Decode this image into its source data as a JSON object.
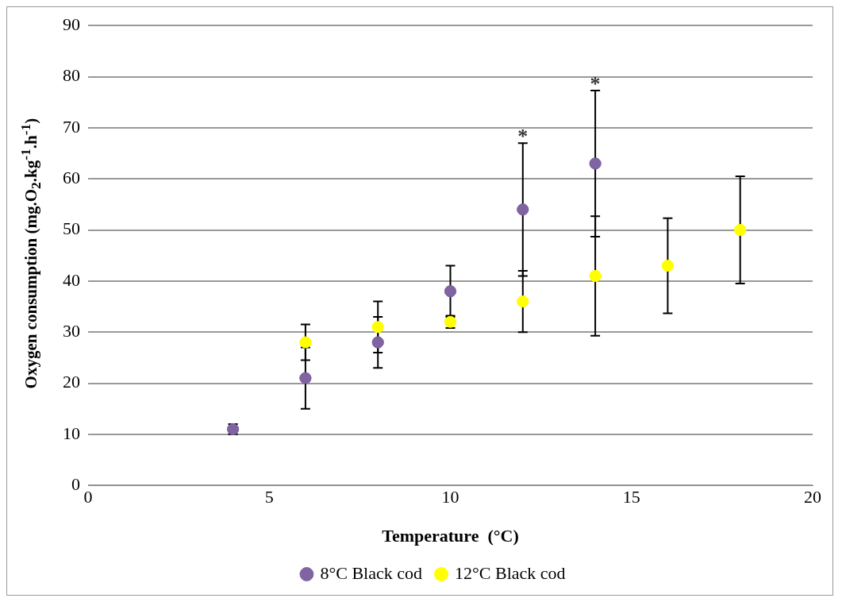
{
  "chart_data": {
    "type": "scatter",
    "xlabel": "Temperature  (°C)",
    "ylabel": "Oxygen consumption  (mg.O$_{2}$.kg$^{-1}$.h$^{-1}$)",
    "xlim": [
      0,
      20
    ],
    "xticks": [
      0,
      5,
      10,
      15,
      20
    ],
    "ylim": [
      0,
      90
    ],
    "yticks": [
      0,
      10,
      20,
      30,
      40,
      50,
      60,
      70,
      80,
      90
    ],
    "grid": "y",
    "legend": "bottom",
    "marker": "circle",
    "series": [
      {
        "name": "8°C Black cod",
        "color": "#8064a2",
        "x": [
          4,
          6,
          8,
          10,
          12,
          14
        ],
        "values": [
          11,
          21,
          28,
          38,
          54,
          63
        ],
        "errors": [
          1,
          6,
          5,
          5,
          13,
          14.3
        ]
      },
      {
        "name": "12°C Black cod",
        "color": "#ffff00",
        "x": [
          6,
          8,
          10,
          12,
          14,
          16,
          18
        ],
        "values": [
          28,
          31,
          32,
          36,
          41,
          43,
          50
        ],
        "errors": [
          3.5,
          5,
          1.2,
          6,
          11.7,
          9.3,
          10.5
        ]
      }
    ],
    "annotations": [
      {
        "text": "*",
        "x": 12,
        "y": 67
      },
      {
        "text": "*",
        "x": 14,
        "y": 77.3
      }
    ]
  }
}
